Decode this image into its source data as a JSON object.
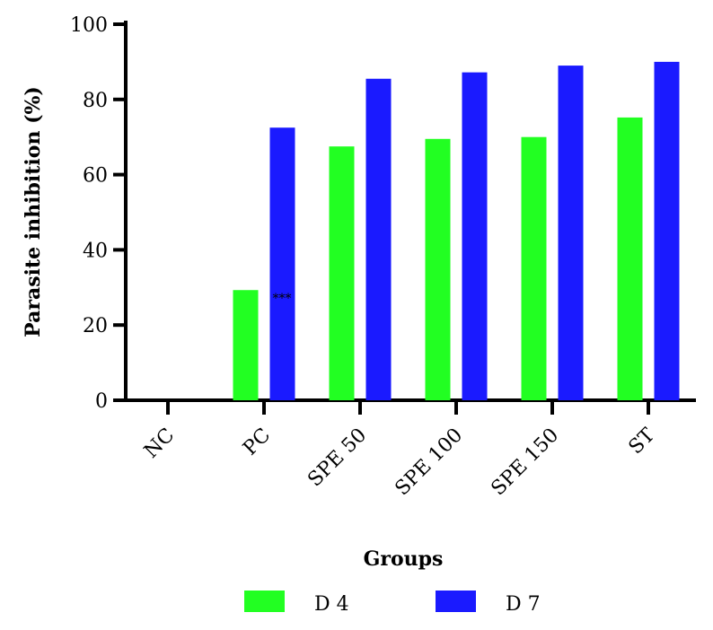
{
  "chart_data": {
    "type": "bar",
    "categories": [
      "NC",
      "PC",
      "SPE 50",
      "SPE 100",
      "SPE 150",
      "ST"
    ],
    "series": [
      {
        "name": "D 4",
        "values": [
          0,
          29.3,
          67.5,
          69.5,
          70.0,
          75.2
        ],
        "color": "#22ff22"
      },
      {
        "name": "D 7",
        "values": [
          0,
          72.5,
          85.5,
          87.2,
          89.0,
          90.0
        ],
        "color": "#1a1aff"
      }
    ],
    "xlabel": "Groups",
    "ylabel": "Parasite inhibition (%)",
    "ylim": [
      0,
      100
    ],
    "yticks": [
      0,
      20,
      40,
      60,
      80,
      100
    ],
    "annotations": [
      {
        "category": "PC",
        "text": "***"
      }
    ],
    "legend": "bottom",
    "grid": false
  }
}
